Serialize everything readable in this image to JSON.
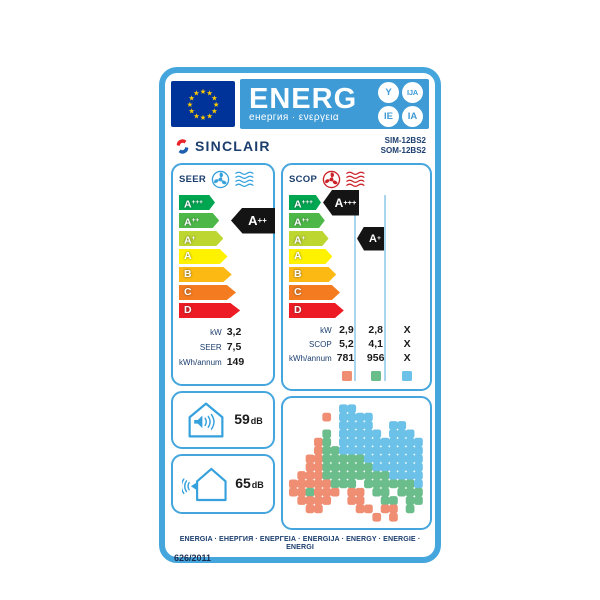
{
  "header": {
    "title": "ENERG",
    "subtitle": "енергия · ενεργεια",
    "suffix_circles": [
      "Y",
      "IJA",
      "IE",
      "IA"
    ]
  },
  "brand": {
    "name": "SINCLAIR",
    "model_indoor": "SIM-12BS2",
    "model_outdoor": "SOM-12BS2"
  },
  "colors": {
    "label_border_blue": "#45a6de",
    "header_blue": "#3e9bd6",
    "eu_flag_blue": "#003399",
    "star_yellow": "#ffcc00",
    "navy_text": "#1c3e6e",
    "black_indicator": "#141414",
    "cooling_accent": "#35a1dc",
    "heating_accent": "#cb2128"
  },
  "efficiency_scale": [
    {
      "grade": "A+++",
      "color": "#00a650"
    },
    {
      "grade": "A++",
      "color": "#4db848"
    },
    {
      "grade": "A+",
      "color": "#bed630"
    },
    {
      "grade": "A",
      "color": "#fff200"
    },
    {
      "grade": "B",
      "color": "#fdb913"
    },
    {
      "grade": "C",
      "color": "#f47b20"
    },
    {
      "grade": "D",
      "color": "#ed1c24"
    }
  ],
  "seer_section": {
    "label": "SEER",
    "rating": {
      "grade": "A++",
      "row": 1
    },
    "values": [
      {
        "label": "kW",
        "value": "3,2"
      },
      {
        "label": "SEER",
        "value": "7,5"
      },
      {
        "label": "kWh/annum",
        "value": "149"
      }
    ]
  },
  "scop_section": {
    "label": "SCOP",
    "ratings": [
      {
        "grade": "A+++",
        "row": 0,
        "col": 0
      },
      {
        "grade": "A+",
        "row": 2,
        "col": 1
      }
    ],
    "value_rows": [
      {
        "label": "kW",
        "values": [
          "2,9",
          "2,8",
          "X"
        ]
      },
      {
        "label": "SCOP",
        "values": [
          "5,2",
          "4,1",
          "X"
        ]
      },
      {
        "label": "kWh/annum",
        "values": [
          "781",
          "956",
          "X"
        ]
      }
    ],
    "zone_colors": [
      "#ef8e72",
      "#6cbd8c",
      "#6cc1e8"
    ]
  },
  "noise": [
    {
      "type": "indoor-unit",
      "value": "59",
      "unit": "dB"
    },
    {
      "type": "outdoor-unit",
      "value": "65",
      "unit": "dB"
    }
  ],
  "map": {
    "colors": {
      "o": "#ef8e72",
      "g": "#6cbd8c",
      "b": "#6cc1e8"
    },
    "grid": [
      "......bb........",
      "....o.bbbb......",
      "......bbbb..bb..",
      "....g.bbbbb.bbb.",
      "...og.bbbbbbbbbb",
      "...oggbbbbbbbbbb",
      "..oogggggbbbbbbb",
      "..ooggggggbbbbbb",
      ".oooggggggggbbbb",
      "oooooggg.ggggggb",
      "oogooo.oo.gg.ggg",
      ".oooo..oo..gg.gg",
      "..oo....oo.oo.g.",
      "..........o.o..."
    ]
  },
  "footer": {
    "languages": "ENERGIA · ЕНЕРГИЯ · ΕΝΕΡΓΕΙΑ · ENERGIJA · ENERGY · ENERGIE · ENERGI",
    "regulation": "626/2011"
  }
}
